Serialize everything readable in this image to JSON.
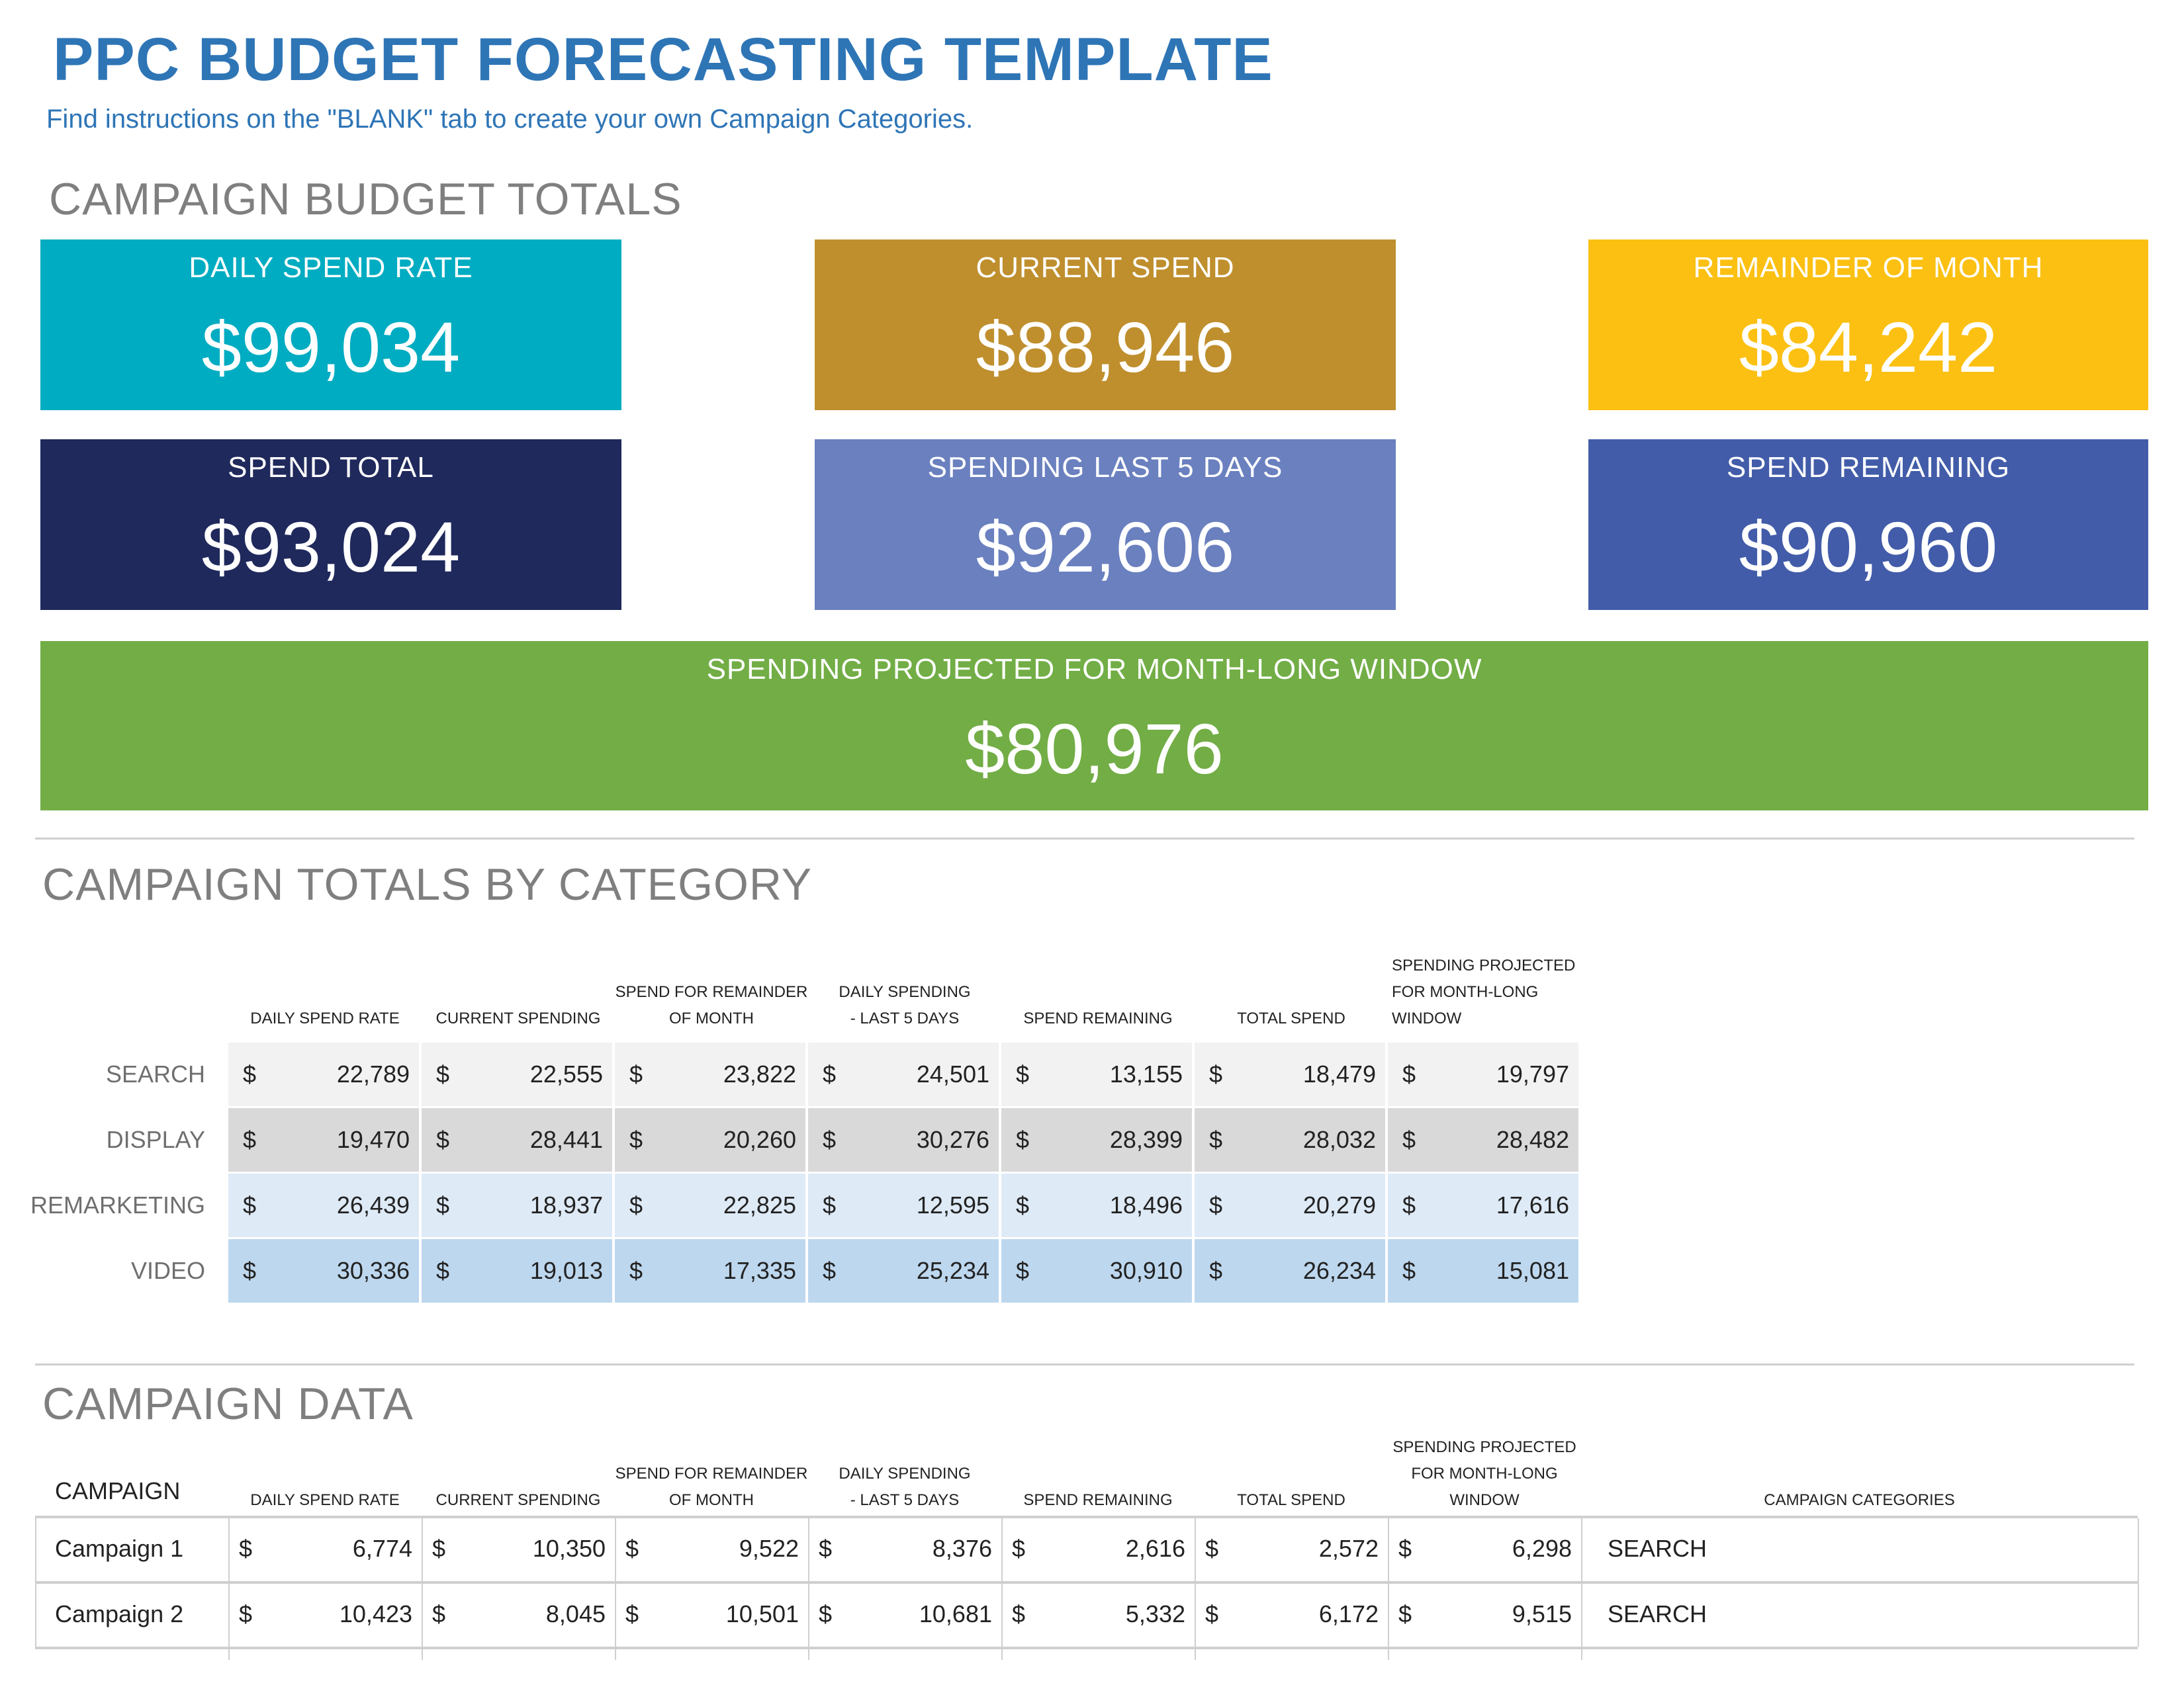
{
  "header": {
    "title": "PPC BUDGET FORECASTING TEMPLATE",
    "subtitle": "Find instructions on the \"BLANK\" tab to create your own Campaign Categories."
  },
  "budget_totals": {
    "heading": "CAMPAIGN BUDGET TOTALS",
    "cards": [
      {
        "label": "DAILY SPEND RATE",
        "value": "$99,034",
        "color": "#00acc1"
      },
      {
        "label": "CURRENT SPEND",
        "value": "$88,946",
        "color": "#bf8f2e"
      },
      {
        "label": "REMAINDER OF MONTH",
        "value": "$84,242",
        "color": "#fbc012"
      },
      {
        "label": "SPEND TOTAL",
        "value": "$93,024",
        "color": "#1f295c"
      },
      {
        "label": "SPENDING LAST 5 DAYS",
        "value": "$92,606",
        "color": "#6a80bf"
      },
      {
        "label": "SPEND REMAINING",
        "value": "$90,960",
        "color": "#425ca9"
      }
    ],
    "projected": {
      "label": "SPENDING PROJECTED FOR MONTH-LONG WINDOW",
      "value": "$80,976",
      "color": "#72ad46"
    }
  },
  "category_totals": {
    "heading": "CAMPAIGN TOTALS BY CATEGORY",
    "columns": [
      [
        "DAILY SPEND RATE"
      ],
      [
        "CURRENT SPENDING"
      ],
      [
        "SPEND FOR REMAINDER",
        "OF MONTH"
      ],
      [
        "DAILY SPENDING",
        "- LAST 5 DAYS"
      ],
      [
        "SPEND REMAINING"
      ],
      [
        "TOTAL SPEND"
      ],
      [
        "SPENDING PROJECTED",
        "FOR MONTH-LONG",
        "WINDOW"
      ]
    ],
    "currency_symbol": "$",
    "rows": [
      {
        "category": "SEARCH",
        "color": "#f2f2f2",
        "values": [
          "22,789",
          "22,555",
          "23,822",
          "24,501",
          "13,155",
          "18,479",
          "19,797"
        ]
      },
      {
        "category": "DISPLAY",
        "color": "#d9d9d9",
        "values": [
          "19,470",
          "28,441",
          "20,260",
          "30,276",
          "28,399",
          "28,032",
          "28,482"
        ]
      },
      {
        "category": "REMARKETING",
        "color": "#deeaf6",
        "values": [
          "26,439",
          "18,937",
          "22,825",
          "12,595",
          "18,496",
          "20,279",
          "17,616"
        ]
      },
      {
        "category": "VIDEO",
        "color": "#bdd7ee",
        "values": [
          "30,336",
          "19,013",
          "17,335",
          "25,234",
          "30,910",
          "26,234",
          "15,081"
        ]
      }
    ]
  },
  "campaign_data": {
    "heading": "CAMPAIGN DATA",
    "first_column": "CAMPAIGN",
    "columns": [
      [
        "DAILY SPEND RATE"
      ],
      [
        "CURRENT SPENDING"
      ],
      [
        "SPEND FOR REMAINDER",
        "OF MONTH"
      ],
      [
        "DAILY SPENDING",
        "- LAST 5 DAYS"
      ],
      [
        "SPEND REMAINING"
      ],
      [
        "TOTAL SPEND"
      ],
      [
        "SPENDING PROJECTED",
        "FOR MONTH-LONG",
        "WINDOW"
      ]
    ],
    "last_column": "CAMPAIGN CATEGORIES",
    "currency_symbol": "$",
    "rows": [
      {
        "campaign": "Campaign 1",
        "values": [
          "6,774",
          "10,350",
          "9,522",
          "8,376",
          "2,616",
          "2,572",
          "6,298"
        ],
        "category": "SEARCH"
      },
      {
        "campaign": "Campaign 2",
        "values": [
          "10,423",
          "8,045",
          "10,501",
          "10,681",
          "5,332",
          "6,172",
          "9,515"
        ],
        "category": "SEARCH"
      }
    ]
  }
}
